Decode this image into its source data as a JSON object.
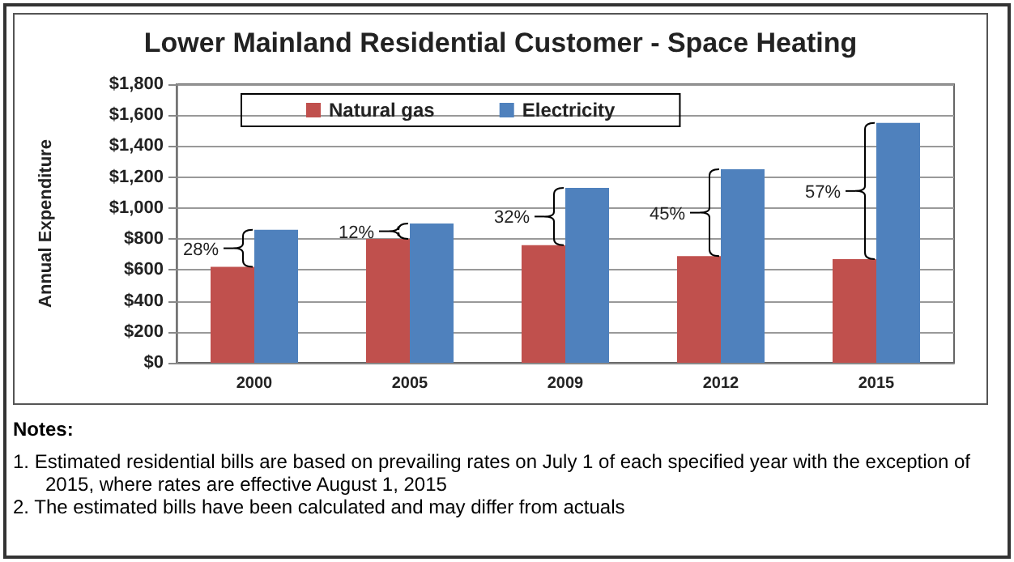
{
  "chart_data": {
    "type": "bar",
    "title": "Lower Mainland Residential Customer - Space Heating",
    "ylabel": "Annual Expenditure",
    "categories": [
      "2000",
      "2005",
      "2009",
      "2012",
      "2015"
    ],
    "series": [
      {
        "name": "Natural gas",
        "color": "#c0504d",
        "values": [
          620,
          800,
          760,
          690,
          670
        ]
      },
      {
        "name": "Electricity",
        "color": "#4f81bd",
        "values": [
          860,
          900,
          1130,
          1250,
          1550
        ]
      }
    ],
    "ylim": [
      0,
      1800
    ],
    "yticks": [
      {
        "value": 0,
        "label": "$0"
      },
      {
        "value": 200,
        "label": "$200"
      },
      {
        "value": 400,
        "label": "$400"
      },
      {
        "value": 600,
        "label": "$600"
      },
      {
        "value": 800,
        "label": "$800"
      },
      {
        "value": 1000,
        "label": "$1,000"
      },
      {
        "value": 1200,
        "label": "$1,200"
      },
      {
        "value": 1400,
        "label": "$1,400"
      },
      {
        "value": 1600,
        "label": "$1,600"
      },
      {
        "value": 1800,
        "label": "$1,800"
      }
    ],
    "grid": "y",
    "legend": "top left",
    "annotations": [
      {
        "text": "28%",
        "x": "2000",
        "y": 740
      },
      {
        "text": "12%",
        "x": "2005",
        "y": 850
      },
      {
        "text": "32%",
        "x": "2009",
        "y": 945
      },
      {
        "text": "45%",
        "x": "2012",
        "y": 970
      },
      {
        "text": "57%",
        "x": "2015",
        "y": 1110
      },
      "Notes:",
      "1. Estimated residential bills are based on prevailing rates on July 1 of each specified year with the exception of 2015, where rates are effective August 1, 2015",
      "2. The estimated bills have been calculated and may differ from actuals"
    ]
  }
}
